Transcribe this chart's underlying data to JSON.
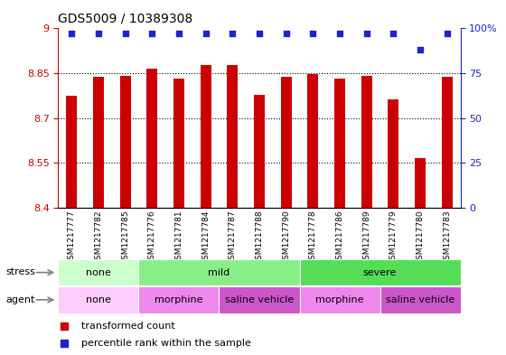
{
  "title": "GDS5009 / 10389308",
  "samples": [
    "GSM1217777",
    "GSM1217782",
    "GSM1217785",
    "GSM1217776",
    "GSM1217781",
    "GSM1217784",
    "GSM1217787",
    "GSM1217788",
    "GSM1217790",
    "GSM1217778",
    "GSM1217786",
    "GSM1217789",
    "GSM1217779",
    "GSM1217780",
    "GSM1217783"
  ],
  "bar_values": [
    8.775,
    8.838,
    8.842,
    8.865,
    8.832,
    8.876,
    8.876,
    8.778,
    8.838,
    8.848,
    8.832,
    8.842,
    8.762,
    8.565,
    8.838
  ],
  "dot_values": [
    97,
    97,
    97,
    97,
    97,
    97,
    97,
    97,
    97,
    97,
    97,
    97,
    97,
    88,
    97
  ],
  "ylim_left": [
    8.4,
    9.0
  ],
  "ylim_right": [
    0,
    100
  ],
  "yticks_left": [
    8.4,
    8.55,
    8.7,
    8.85,
    9.0
  ],
  "yticks_right": [
    0,
    25,
    50,
    75,
    100
  ],
  "ytick_labels_left": [
    "8.4",
    "8.55",
    "8.7",
    "8.85",
    "9"
  ],
  "ytick_labels_right": [
    "0",
    "25",
    "50",
    "75",
    "100%"
  ],
  "bar_color": "#CC0000",
  "dot_color": "#2222CC",
  "stress_groups": [
    {
      "label": "none",
      "start": 0,
      "end": 3,
      "color": "#CCFFCC"
    },
    {
      "label": "mild",
      "start": 3,
      "end": 9,
      "color": "#88EE88"
    },
    {
      "label": "severe",
      "start": 9,
      "end": 15,
      "color": "#55DD55"
    }
  ],
  "agent_groups": [
    {
      "label": "none",
      "start": 0,
      "end": 3,
      "color": "#FFCCFF"
    },
    {
      "label": "morphine",
      "start": 3,
      "end": 6,
      "color": "#EE88EE"
    },
    {
      "label": "saline vehicle",
      "start": 6,
      "end": 9,
      "color": "#CC55CC"
    },
    {
      "label": "morphine",
      "start": 9,
      "end": 12,
      "color": "#EE88EE"
    },
    {
      "label": "saline vehicle",
      "start": 12,
      "end": 15,
      "color": "#CC55CC"
    }
  ],
  "legend_items": [
    {
      "label": "transformed count",
      "color": "#CC0000"
    },
    {
      "label": "percentile rank within the sample",
      "color": "#2222CC"
    }
  ],
  "background_color": "#FFFFFF",
  "stress_row_label": "stress",
  "agent_row_label": "agent",
  "bar_width": 0.4
}
